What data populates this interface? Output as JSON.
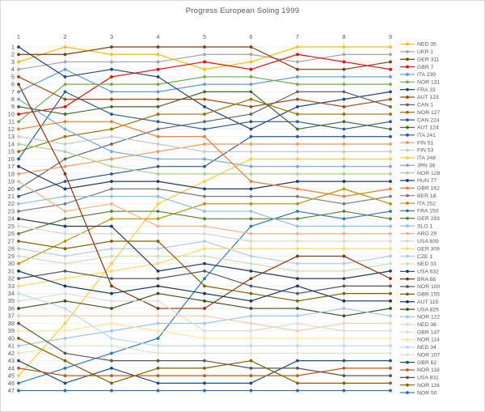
{
  "title": "Progress European Soling 1999",
  "colors": {
    "background": "#FFFFFF",
    "border": "#D9D9D9",
    "grid_vertical": "#D9D9D9",
    "grid_horizontal": "#EFEFEF",
    "axis_text": "#595959",
    "title_text": "#595959",
    "legend_text": "#595959"
  },
  "chart_data": {
    "type": "line",
    "subtype": "rank-progress-bump",
    "title": "Progress European Soling 1999",
    "xlabel": "",
    "ylabel": "",
    "x_label_position": "top",
    "legend_position": "right",
    "grid": true,
    "x_ticks": [
      "1",
      "2",
      "3",
      "4",
      "5",
      "6",
      "7",
      "8",
      "9"
    ],
    "y_ticks": [
      "1",
      "2",
      "3",
      "4",
      "5",
      "6",
      "7",
      "8",
      "9",
      "10",
      "11",
      "12",
      "13",
      "14",
      "15",
      "16",
      "17",
      "18",
      "19",
      "20",
      "21",
      "22",
      "23",
      "24",
      "25",
      "26",
      "27",
      "28",
      "29",
      "30",
      "31",
      "32",
      "33",
      "34",
      "35",
      "36",
      "37",
      "38",
      "39",
      "40",
      "41",
      "42",
      "43",
      "44",
      "45",
      "46",
      "47"
    ],
    "x_range": [
      1,
      9
    ],
    "y_range": [
      1,
      47
    ],
    "y_meaning": "overall ranking after each race (1 = leader)",
    "series": [
      {
        "name": "NED 35",
        "color": "#FFC000",
        "ranks": [
          3,
          1,
          2,
          2,
          4,
          3,
          1,
          1,
          1
        ]
      },
      {
        "name": "UKR 1",
        "color": "#A5A5A5",
        "ranks": [
          4,
          3,
          3,
          3,
          2,
          2,
          3,
          2,
          2
        ]
      },
      {
        "name": "GER 311",
        "color": "#843C0C",
        "ranks": [
          2,
          2,
          1,
          1,
          1,
          1,
          4,
          4,
          3
        ]
      },
      {
        "name": "GBR 7",
        "color": "#FF0000",
        "ranks": [
          10,
          9,
          5,
          4,
          3,
          4,
          2,
          3,
          4
        ]
      },
      {
        "name": "ITA 239",
        "color": "#5B9BD5",
        "ranks": [
          7,
          4,
          7,
          7,
          6,
          6,
          5,
          5,
          5
        ]
      },
      {
        "name": "NOR 131",
        "color": "#70AD47",
        "ranks": [
          11,
          6,
          6,
          6,
          5,
          5,
          6,
          6,
          6
        ]
      },
      {
        "name": "FRA 33",
        "color": "#264478",
        "ranks": [
          1,
          5,
          4,
          5,
          9,
          12,
          9,
          8,
          7
        ]
      },
      {
        "name": "AUT 123",
        "color": "#9E480E",
        "ranks": [
          5,
          8,
          8,
          8,
          8,
          9,
          8,
          9,
          8
        ]
      },
      {
        "name": "CAN 1",
        "color": "#636363",
        "ranks": [
          20,
          16,
          14,
          12,
          11,
          10,
          7,
          7,
          9
        ]
      },
      {
        "name": "NOR 127",
        "color": "#997300",
        "ranks": [
          15,
          13,
          12,
          10,
          10,
          8,
          10,
          10,
          10
        ]
      },
      {
        "name": "CAN 224",
        "color": "#255E91",
        "ranks": [
          16,
          7,
          10,
          11,
          12,
          11,
          11,
          12,
          11
        ]
      },
      {
        "name": "AUT 124",
        "color": "#43682B",
        "ranks": [
          9,
          10,
          9,
          9,
          7,
          7,
          12,
          11,
          12
        ]
      },
      {
        "name": "ITA 241",
        "color": "#2F5597",
        "ranks": [
          21,
          19,
          18,
          17,
          17,
          13,
          13,
          13,
          13
        ]
      },
      {
        "name": "FIN 51",
        "color": "#F1975A",
        "ranks": [
          18,
          17,
          16,
          15,
          14,
          14,
          14,
          14,
          14
        ]
      },
      {
        "name": "FIN 53",
        "color": "#C9C9C9",
        "ranks": [
          13,
          14,
          13,
          14,
          15,
          15,
          15,
          15,
          15
        ]
      },
      {
        "name": "ITA 248",
        "color": "#FFCD33",
        "ranks": [
          45,
          38,
          30,
          22,
          19,
          16,
          16,
          16,
          16
        ]
      },
      {
        "name": "JPN 36",
        "color": "#74A9D8",
        "ranks": [
          8,
          12,
          15,
          16,
          16,
          17,
          17,
          17,
          17
        ]
      },
      {
        "name": "NOR 128",
        "color": "#A9D18E",
        "ranks": [
          14,
          15,
          17,
          18,
          18,
          18,
          18,
          18,
          18
        ]
      },
      {
        "name": "HUN 77",
        "color": "#203864",
        "ranks": [
          17,
          20,
          19,
          19,
          20,
          20,
          19,
          19,
          19
        ]
      },
      {
        "name": "GBR 162",
        "color": "#ED7D31",
        "ranks": [
          12,
          11,
          11,
          13,
          13,
          19,
          20,
          21,
          20
        ]
      },
      {
        "name": "BER 18",
        "color": "#7B7B7B",
        "ranks": [
          23,
          22,
          20,
          20,
          21,
          21,
          21,
          22,
          21
        ]
      },
      {
        "name": "ITA 252",
        "color": "#BF9000",
        "ranks": [
          30,
          27,
          24,
          24,
          22,
          22,
          22,
          20,
          22
        ]
      },
      {
        "name": "FRA 150",
        "color": "#2E75B6",
        "ranks": [
          46,
          44,
          42,
          40,
          32,
          25,
          23,
          24,
          23
        ]
      },
      {
        "name": "GER 293",
        "color": "#548235",
        "ranks": [
          26,
          24,
          23,
          23,
          24,
          24,
          24,
          23,
          24
        ]
      },
      {
        "name": "SLO 1",
        "color": "#8CBFE4",
        "ranks": [
          22,
          21,
          21,
          21,
          23,
          23,
          25,
          25,
          25
        ]
      },
      {
        "name": "ARG 29",
        "color": "#F4B183",
        "ranks": [
          19,
          23,
          22,
          25,
          25,
          26,
          26,
          26,
          26
        ]
      },
      {
        "name": "USA 839",
        "color": "#D6D6D6",
        "ranks": [
          25,
          26,
          26,
          26,
          26,
          27,
          27,
          27,
          27
        ]
      },
      {
        "name": "GER 309",
        "color": "#FFD966",
        "ranks": [
          33,
          32,
          31,
          30,
          28,
          28,
          28,
          28,
          28
        ]
      },
      {
        "name": "CZE 1",
        "color": "#B4C7E7",
        "ranks": [
          28,
          29,
          28,
          28,
          27,
          29,
          30,
          30,
          29
        ]
      },
      {
        "name": "NED 33",
        "color": "#C5E0B4",
        "ranks": [
          29,
          30,
          29,
          29,
          29,
          30,
          31,
          31,
          30
        ]
      },
      {
        "name": "USA 632",
        "color": "#1F3864",
        "ranks": [
          24,
          25,
          25,
          31,
          30,
          31,
          32,
          32,
          31
        ]
      },
      {
        "name": "BRA 68",
        "color": "#8B3103",
        "ranks": [
          6,
          18,
          33,
          36,
          36,
          32,
          29,
          29,
          32
        ]
      },
      {
        "name": "NOR 100",
        "color": "#585858",
        "ranks": [
          32,
          31,
          32,
          32,
          31,
          33,
          34,
          33,
          33
        ]
      },
      {
        "name": "GBR 155",
        "color": "#7F6000",
        "ranks": [
          27,
          28,
          27,
          27,
          33,
          34,
          35,
          34,
          34
        ]
      },
      {
        "name": "AUT 115",
        "color": "#16365C",
        "ranks": [
          31,
          33,
          34,
          33,
          34,
          35,
          33,
          35,
          35
        ]
      },
      {
        "name": "USA 829",
        "color": "#38531F",
        "ranks": [
          36,
          35,
          36,
          34,
          35,
          36,
          36,
          37,
          36
        ]
      },
      {
        "name": "NOR 122",
        "color": "#9DC3E6",
        "ranks": [
          41,
          40,
          39,
          38,
          38,
          37,
          37,
          36,
          37
        ]
      },
      {
        "name": "NED 38",
        "color": "#F8CBAD",
        "ranks": [
          37,
          37,
          37,
          37,
          37,
          38,
          39,
          38,
          38
        ]
      },
      {
        "name": "GBR 147",
        "color": "#DBDBDB",
        "ranks": [
          35,
          34,
          35,
          35,
          39,
          39,
          38,
          39,
          39
        ]
      },
      {
        "name": "NOR 114",
        "color": "#FFE699",
        "ranks": [
          39,
          39,
          38,
          39,
          40,
          40,
          40,
          40,
          40
        ]
      },
      {
        "name": "NED 34",
        "color": "#BDD7EE",
        "ranks": [
          34,
          36,
          40,
          41,
          41,
          41,
          41,
          41,
          41
        ]
      },
      {
        "name": "NOR 107",
        "color": "#D5E8C9",
        "ranks": [
          42,
          41,
          41,
          42,
          42,
          42,
          42,
          42,
          42
        ]
      },
      {
        "name": "GBR 62",
        "color": "#1F4E79",
        "ranks": [
          43,
          46,
          44,
          46,
          46,
          46,
          43,
          43,
          43
        ]
      },
      {
        "name": "NOR 118",
        "color": "#C55A11",
        "ranks": [
          44,
          45,
          45,
          45,
          45,
          45,
          45,
          44,
          44
        ]
      },
      {
        "name": "USA 831",
        "color": "#545454",
        "ranks": [
          38,
          42,
          43,
          43,
          43,
          44,
          44,
          45,
          45
        ]
      },
      {
        "name": "NOR 116",
        "color": "#806000",
        "ranks": [
          40,
          43,
          46,
          44,
          44,
          43,
          46,
          46,
          46
        ]
      },
      {
        "name": "NOR 50",
        "color": "#2874A6",
        "ranks": [
          47,
          47,
          47,
          47,
          47,
          47,
          47,
          47,
          47
        ]
      }
    ]
  },
  "layout_hints": {
    "plot_left_x": 22,
    "plot_column_step": 57.5,
    "rank_top_y": 57,
    "rank_step": 9.23
  }
}
